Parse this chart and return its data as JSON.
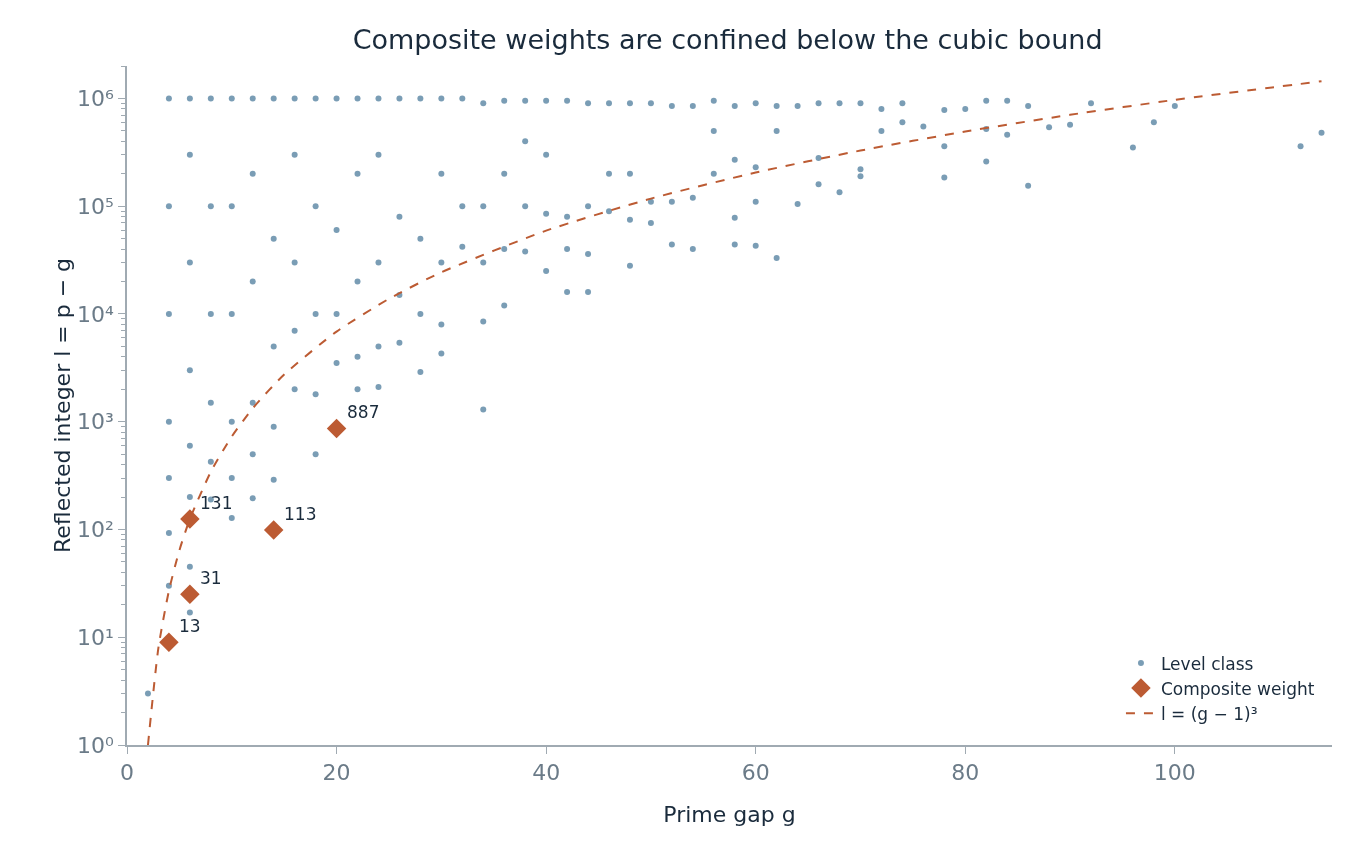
{
  "chart_data": {
    "type": "scatter",
    "title": "Composite weights are confined below the cubic bound",
    "xlabel": "Prime gap g",
    "ylabel": "Reflected integer l = p − g",
    "xlim": [
      0,
      115
    ],
    "xticks": [
      0,
      20,
      40,
      60,
      80,
      100
    ],
    "ylim": [
      1,
      2000000
    ],
    "yticks": [
      {
        "value": 1,
        "label": "10⁰"
      },
      {
        "value": 10,
        "label": "10¹"
      },
      {
        "value": 100,
        "label": "10²"
      },
      {
        "value": 1000,
        "label": "10³"
      },
      {
        "value": 10000,
        "label": "10⁴"
      },
      {
        "value": 100000,
        "label": "10⁵"
      },
      {
        "value": 1000000,
        "label": "10⁶"
      }
    ],
    "log": "y",
    "grid": false,
    "legend": "bottom right",
    "series": [
      {
        "name": "Level class",
        "marker": "circle",
        "color": "#225b84",
        "x": [
          2,
          4,
          4,
          4,
          4,
          4,
          4,
          4,
          6,
          6,
          6,
          6,
          6,
          6,
          6,
          6,
          8,
          8,
          8,
          8,
          8,
          8,
          10,
          10,
          10,
          10,
          10,
          10,
          12,
          12,
          12,
          12,
          12,
          12,
          14,
          14,
          14,
          14,
          14,
          16,
          16,
          16,
          16,
          16,
          18,
          18,
          18,
          18,
          18,
          20,
          20,
          20,
          20,
          22,
          22,
          22,
          22,
          22,
          24,
          24,
          24,
          24,
          24,
          26,
          26,
          26,
          26,
          28,
          28,
          28,
          28,
          30,
          30,
          30,
          30,
          30,
          32,
          32,
          32,
          34,
          34,
          34,
          34,
          34,
          36,
          36,
          36,
          36,
          38,
          38,
          38,
          38,
          40,
          40,
          40,
          40,
          42,
          42,
          42,
          42,
          44,
          44,
          44,
          44,
          46,
          46,
          46,
          48,
          48,
          48,
          48,
          50,
          50,
          50,
          52,
          52,
          52,
          54,
          54,
          54,
          56,
          56,
          56,
          58,
          58,
          58,
          58,
          60,
          60,
          60,
          60,
          62,
          62,
          62,
          64,
          64,
          66,
          66,
          66,
          68,
          68,
          70,
          70,
          70,
          72,
          72,
          74,
          74,
          76,
          78,
          78,
          78,
          80,
          82,
          82,
          82,
          84,
          84,
          86,
          86,
          88,
          90,
          92,
          96,
          98,
          100,
          112,
          114
        ],
        "values": [
          3,
          30,
          93,
          300,
          1000,
          10000,
          100000,
          1000000,
          17,
          45,
          200,
          600,
          3000,
          30000,
          300000,
          1000000,
          190,
          425,
          1500,
          10000,
          100000,
          1000000,
          128,
          300,
          1000,
          10000,
          100000,
          1000000,
          195,
          500,
          1500,
          20000,
          200000,
          1000000,
          290,
          900,
          5000,
          50000,
          1000000,
          2000,
          7000,
          30000,
          300000,
          1000000,
          500,
          1800,
          10000,
          100000,
          1000000,
          3500,
          10000,
          60000,
          1000000,
          2000,
          4000,
          20000,
          200000,
          1000000,
          2100,
          5000,
          30000,
          300000,
          1000000,
          5400,
          15000,
          80000,
          1000000,
          2900,
          10000,
          50000,
          1000000,
          4300,
          8000,
          30000,
          200000,
          1000000,
          42000,
          100000,
          1000000,
          1300,
          8500,
          30000,
          100000,
          900000,
          12000,
          40000,
          200000,
          950000,
          38000,
          100000,
          400000,
          950000,
          25000,
          85000,
          300000,
          950000,
          16000,
          40000,
          80000,
          950000,
          16000,
          36000,
          100000,
          900000,
          90000,
          200000,
          900000,
          28000,
          75000,
          200000,
          900000,
          70000,
          110000,
          900000,
          44000,
          110000,
          850000,
          40000,
          120000,
          850000,
          200000,
          500000,
          950000,
          44000,
          78000,
          270000,
          850000,
          43000,
          110000,
          230000,
          900000,
          33000,
          500000,
          850000,
          105000,
          850000,
          160000,
          280000,
          900000,
          135000,
          900000,
          190000,
          220000,
          900000,
          500000,
          800000,
          600000,
          900000,
          550000,
          185000,
          360000,
          780000,
          800000,
          260000,
          520000,
          950000,
          460000,
          950000,
          155000,
          850000,
          540000,
          570000,
          900000,
          350000,
          600000,
          850000,
          360000,
          480000
        ]
      },
      {
        "name": "Composite weight",
        "type": "scatter",
        "marker": "diamond",
        "color": "#bc5b33",
        "x": [
          4,
          6,
          6,
          14,
          20
        ],
        "values": [
          9,
          25,
          125,
          99,
          867
        ]
      },
      {
        "name": "l = (g − 1)³",
        "type": "line",
        "marker": "none",
        "line_style": "dashed",
        "color": "#bc5b33",
        "x": [
          2,
          3,
          4,
          5,
          6,
          8,
          10,
          12,
          15,
          20,
          25,
          30,
          40,
          50,
          60,
          70,
          80,
          90,
          100,
          114
        ],
        "values": [
          1,
          8,
          27,
          64,
          125,
          343,
          729,
          1331,
          2744,
          6859,
          13824,
          24389,
          59319,
          117649,
          205379,
          328509,
          493039,
          704969,
          970299,
          1442897
        ]
      }
    ],
    "annotations": [
      {
        "text": "13",
        "x": 4,
        "y": 9
      },
      {
        "text": "31",
        "x": 6,
        "y": 25
      },
      {
        "text": "131",
        "x": 6,
        "y": 125
      },
      {
        "text": "113",
        "x": 14,
        "y": 99
      },
      {
        "text": "887",
        "x": 20,
        "y": 867
      }
    ]
  }
}
